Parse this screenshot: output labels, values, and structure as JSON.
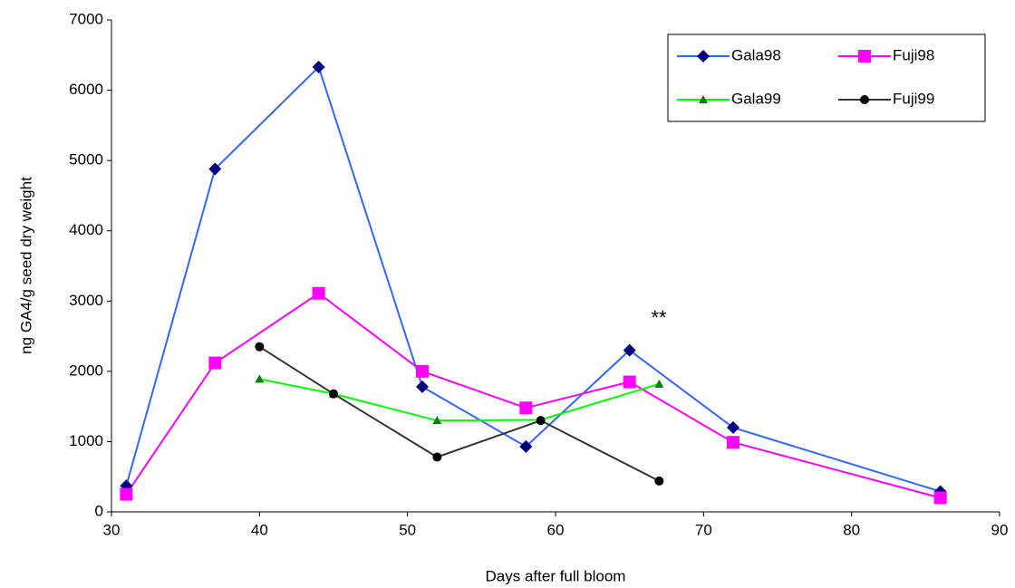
{
  "chart_data": {
    "type": "line",
    "x_label": "Days after full bloom",
    "y_label": "ng GA4/g seed dry weight",
    "annotation": "**",
    "xlim": [
      30,
      90
    ],
    "xticks": [
      30,
      40,
      50,
      60,
      70,
      80,
      90
    ],
    "ylim": [
      0,
      7000
    ],
    "yticks": [
      0,
      1000,
      2000,
      3000,
      4000,
      5000,
      6000,
      7000
    ],
    "legend": "top-right",
    "series": [
      {
        "name": "Gala98",
        "color": "#3366ff",
        "marker_color": "#000080",
        "marker": "diamond",
        "x": [
          31,
          37,
          44,
          51,
          58,
          65,
          72,
          86
        ],
        "values": [
          370,
          4880,
          6330,
          1780,
          930,
          2300,
          1200,
          290
        ]
      },
      {
        "name": "Fuji98",
        "color": "#ff00ff",
        "marker_color": "#ff00ff",
        "marker": "square",
        "x": [
          31,
          37,
          44,
          51,
          58,
          65,
          72,
          86
        ],
        "values": [
          250,
          2120,
          3110,
          2000,
          1480,
          1850,
          990,
          200
        ]
      },
      {
        "name": "Gala99",
        "color": "#00ff00",
        "marker_color": "#008000",
        "marker": "triangle",
        "x": [
          40,
          45,
          52,
          59,
          67
        ],
        "values": [
          1890,
          1680,
          1300,
          1310,
          1820
        ]
      },
      {
        "name": "Fuji99",
        "color": "#333333",
        "marker_color": "#000000",
        "marker": "circle",
        "x": [
          40,
          45,
          52,
          59,
          67
        ],
        "values": [
          2350,
          1680,
          780,
          1300,
          440
        ]
      }
    ]
  }
}
